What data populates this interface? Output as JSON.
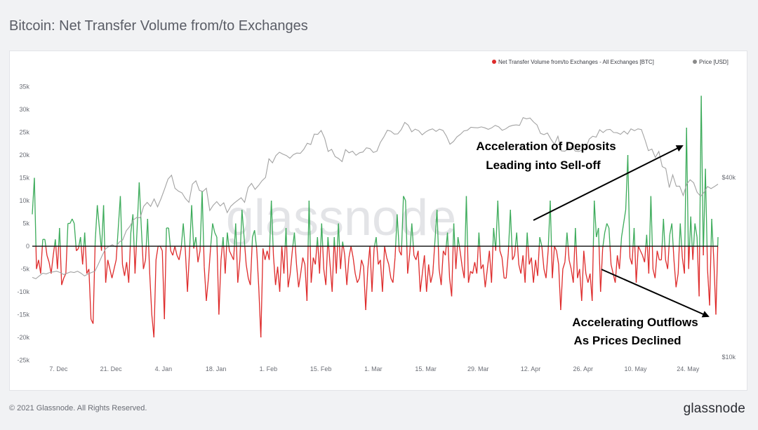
{
  "header": {
    "title": "Bitcoin: Net Transfer Volume from/to Exchanges"
  },
  "footer": {
    "copyright": "© 2021 Glassnode. All Rights Reserved.",
    "brand": "glassnode"
  },
  "colors": {
    "positive": "#3cab5a",
    "negative": "#de2b2b",
    "price": "#a3a3a3",
    "zero_line": "#1d1d1d"
  },
  "chart_data": {
    "type": "bar",
    "title": "Bitcoin: Net Transfer Volume from/to Exchanges",
    "watermark": "glassnode",
    "legend": {
      "placement": "top-right",
      "entries": [
        {
          "label": "Net Transfer Volume from/to Exchanges - All Exchanges [BTC]",
          "color": "#de2b2b"
        },
        {
          "label": "Price [USD]",
          "color": "#8a8a8a"
        }
      ]
    },
    "y_left": {
      "ticks": [
        "35k",
        "30k",
        "25k",
        "20k",
        "15k",
        "10k",
        "5k",
        "0",
        "-5k",
        "-10k",
        "-15k",
        "-20k",
        "-25k"
      ],
      "range": [
        -25000,
        35000
      ]
    },
    "y_right": {
      "ticks": [
        "$40k",
        "$10k"
      ],
      "scale": "log",
      "range": [
        10000,
        80000
      ]
    },
    "x_ticks": [
      "7. Dec",
      "21. Dec",
      "4. Jan",
      "18. Jan",
      "1. Feb",
      "15. Feb",
      "1. Mar",
      "15. Mar",
      "29. Mar",
      "12. Apr",
      "26. Apr",
      "10. May",
      "24. May"
    ],
    "x_range": {
      "start_day": -7,
      "end_day": 176
    },
    "net_volume": [
      7000,
      15000,
      -5000,
      -3000,
      -6000,
      1500,
      1500,
      -2000,
      -3500,
      -6000,
      -2000,
      1500,
      -5000,
      4000,
      -8500,
      -7000,
      -6000,
      5000,
      5000,
      6000,
      5000,
      -1000,
      -500,
      2000,
      -4000,
      3000,
      -6000,
      -5000,
      -16000,
      -17000,
      1000,
      9000,
      4000,
      -1000,
      9000,
      -8000,
      -3000,
      -5000,
      -7000,
      -5000,
      -3000,
      4000,
      11000,
      -4000,
      -6500,
      -3500,
      -8000,
      3000,
      7000,
      -6000,
      4000,
      14000,
      4000,
      -5000,
      -3000,
      6000,
      -6000,
      -15000,
      -20000,
      -3000,
      0,
      0,
      -1000,
      -16000,
      4000,
      4000,
      -1000,
      -2000,
      0,
      -2000,
      -3000,
      -500,
      5000,
      -1000,
      -10000,
      -1000,
      9000,
      -500,
      2000,
      -3500,
      -1000,
      12000,
      -4500,
      -12000,
      -7000,
      -500,
      5000,
      3000,
      2000,
      -15000,
      -3000,
      2000,
      -6000,
      3000,
      -1000,
      -2000,
      -3000,
      5000,
      -8000,
      -3000,
      8000,
      2000,
      -4000,
      -7000,
      -8500,
      2000,
      3500,
      -500,
      -9000,
      -20000,
      -500,
      -3000,
      -1000,
      -3000,
      10000,
      -2000,
      -8500,
      -4500,
      -10000,
      0,
      -6000,
      4000,
      -9000,
      -6000,
      -1000,
      3000,
      -4000,
      -9000,
      -6000,
      -2500,
      -4000,
      -12000,
      10000,
      -8000,
      -2500,
      -4000,
      2000,
      -6000,
      5000,
      -5000,
      -8500,
      2000,
      -4000,
      -10000,
      2000,
      -6000,
      5000,
      -5000,
      1000,
      -2000,
      -8500,
      -2500,
      0,
      -2500,
      -6000,
      -8000,
      -7000,
      -3000,
      -4500,
      -14000,
      -5000,
      0,
      -10000,
      -500,
      2000,
      -4000,
      -3000,
      -10000,
      0,
      -2500,
      -4000,
      -7000,
      -8000,
      -2500,
      7000,
      -1000,
      -2000,
      11000,
      10000,
      -6000,
      -1500,
      5000,
      -2000,
      -3000,
      -1000,
      -10000,
      -6000,
      -2000,
      -10000,
      -4000,
      -8000,
      -6000,
      1000,
      8000,
      -5000,
      -8500,
      -1000,
      -2000,
      3000,
      -7000,
      -11000,
      5000,
      -5000,
      2000,
      -1000,
      -4500,
      -7000,
      11000,
      -8000,
      -5500,
      -6000,
      -3500,
      -6000,
      3000,
      -5000,
      -4000,
      -9000,
      -5000,
      -1000,
      -8000,
      4000,
      -1000,
      10000,
      -1000,
      -2500,
      -7000,
      -7000,
      -1500,
      8000,
      -3000,
      -2000,
      3000,
      -4000,
      -6000,
      -2000,
      -8000,
      3000,
      -4000,
      -2500,
      -8000,
      -3000,
      -6500,
      2000,
      0,
      -5000,
      -7000,
      -1000,
      10000,
      -7000,
      0,
      -1000,
      -4000,
      -14000,
      -5000,
      -3500,
      3000,
      -3000,
      -5000,
      -8000,
      4000,
      -7000,
      -5000,
      -12000,
      -1000,
      -6000,
      -8000,
      -6000,
      -12000,
      10000,
      2000,
      4000,
      -10000,
      -500,
      3000,
      5000,
      4000,
      -4000,
      -6000,
      -8000,
      -2000,
      -5000,
      2000,
      5000,
      8000,
      20000,
      -2500,
      -4000,
      4000,
      -8000,
      0,
      -1000,
      -2000,
      -3500,
      2500,
      -6000,
      11000,
      -5000,
      -7000,
      -1000,
      -3000,
      -3000,
      6000,
      -3000,
      -5000,
      2500,
      5000,
      -3000,
      -9000,
      -6000,
      5000,
      -2500,
      -6000,
      26000,
      -5000,
      6500,
      -3000,
      5000,
      2000,
      -11000,
      33000,
      -2000,
      17000,
      -5000,
      -13000,
      6000,
      -3000,
      -15000,
      2000
    ],
    "price_usd": [
      18500,
      18300,
      18700,
      19100,
      19000,
      19200,
      19300,
      19400,
      19200,
      18900,
      19100,
      19300,
      19200,
      19400,
      19100,
      18700,
      19000,
      19200,
      19400,
      20500,
      21800,
      23000,
      23500,
      23800,
      23400,
      24300,
      24700,
      26500,
      27400,
      28800,
      29400,
      29300,
      32000,
      33000,
      32000,
      33900,
      31900,
      34000,
      36600,
      39500,
      40700,
      36800,
      36000,
      35500,
      34000,
      33000,
      38000,
      39000,
      36200,
      35900,
      36800,
      31000,
      32300,
      33200,
      32100,
      32900,
      30500,
      32000,
      32800,
      33500,
      34200,
      33000,
      37000,
      38200,
      36500,
      37600,
      39000,
      40000,
      46200,
      44800,
      47400,
      48600,
      47900,
      47400,
      46400,
      47700,
      48300,
      48200,
      49700,
      52100,
      51600,
      55900,
      55800,
      57500,
      54100,
      48900,
      49700,
      47000,
      46300,
      45200,
      49600,
      48400,
      49000,
      47500,
      48400,
      48700,
      50300,
      50000,
      48500,
      49000,
      52400,
      54700,
      57600,
      57200,
      55900,
      56000,
      57900,
      61200,
      59900,
      56900,
      58100,
      57400,
      55600,
      56800,
      57700,
      58200,
      57100,
      58100,
      57500,
      55000,
      51700,
      52800,
      54700,
      55800,
      57300,
      57600,
      58900,
      58800,
      58700,
      59100,
      58700,
      58000,
      58700,
      59800,
      59100,
      57600,
      58200,
      59300,
      59800,
      60000,
      59800,
      63500,
      62900,
      63300,
      61400,
      60000,
      56200,
      55700,
      56400,
      53800,
      51700,
      55000,
      49100,
      49000,
      50000,
      50800,
      49000,
      48900,
      49400,
      50100,
      53800,
      55000,
      54600,
      57800,
      56600,
      57800,
      58000,
      56600,
      56500,
      55800,
      57200,
      55900,
      58200,
      57400,
      58200,
      57900,
      53600,
      49200,
      49800,
      46700,
      48900,
      43500,
      42900,
      37000,
      40800,
      37400,
      37400,
      34800,
      38000,
      39300,
      38400,
      35700,
      34600,
      35700,
      37300,
      36700,
      37300,
      38000
    ]
  },
  "annotations": {
    "deposits_line1": "Acceleration of Deposits",
    "deposits_line2": "Leading into Sell-off",
    "outflows_line1": "Accelerating Outflows",
    "outflows_line2": "As Prices Declined"
  }
}
